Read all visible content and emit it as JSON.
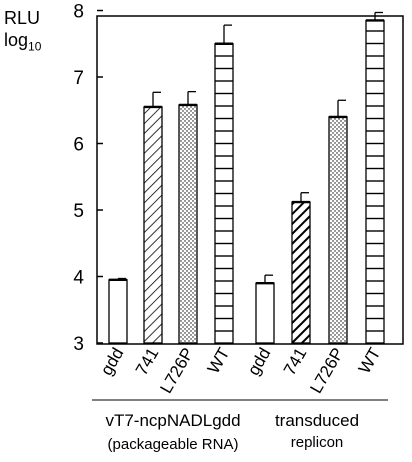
{
  "y_axis": {
    "label_main": "RLU",
    "label_log": "log",
    "label_sub": "10"
  },
  "groups": [
    {
      "title": "vT7-ncpNADLgdd",
      "subtitle": "(packageable RNA)"
    },
    {
      "title": "transduced",
      "subtitle": "replicon"
    }
  ],
  "chart_data": {
    "type": "bar",
    "ylim": [
      3,
      8
    ],
    "yticks": [
      "3",
      "4",
      "5",
      "6",
      "7",
      "8"
    ],
    "categories": [
      "gdd",
      "741",
      "L726P",
      "WT",
      "gdd",
      "741",
      "L726P",
      "WT"
    ],
    "group_of_category": [
      0,
      0,
      0,
      0,
      1,
      1,
      1,
      1
    ],
    "patterns": [
      "open",
      "diagonal",
      "dotted",
      "horizontal",
      "open",
      "diagonal-bold",
      "dotted",
      "horizontal"
    ],
    "values": [
      3.95,
      6.55,
      6.58,
      7.5,
      3.9,
      5.12,
      6.4,
      7.85
    ],
    "errors": [
      0.02,
      0.22,
      0.2,
      0.28,
      0.12,
      0.14,
      0.25,
      0.12
    ],
    "xlabel": "",
    "ylabel": "RLU log10",
    "grid": false
  }
}
